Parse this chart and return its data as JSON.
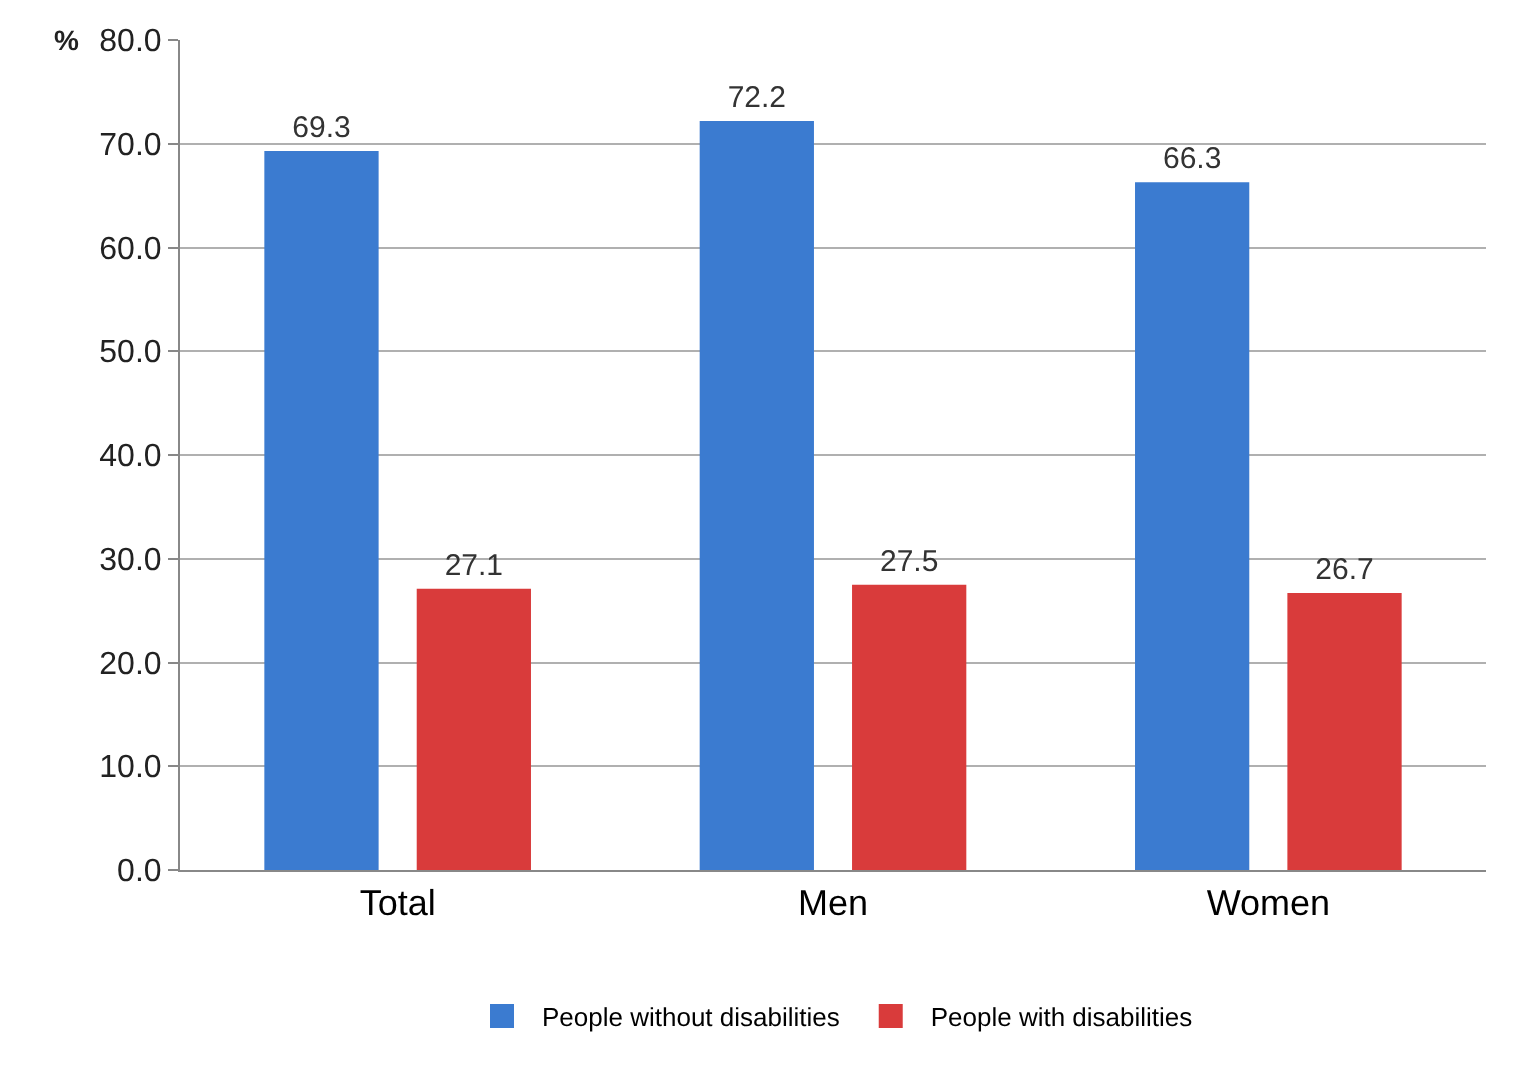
{
  "chart_data": {
    "type": "bar",
    "ylabel": "%",
    "categories": [
      "Total",
      "Men",
      "Women"
    ],
    "series": [
      {
        "name": "People without disabilities",
        "color": "#3b7bd0",
        "values": [
          69.3,
          72.2,
          66.3
        ]
      },
      {
        "name": "People with disabilities",
        "color": "#d93b3b",
        "values": [
          27.1,
          27.5,
          26.7
        ]
      }
    ],
    "ylim": [
      0,
      80
    ],
    "yticks": [
      {
        "value": 0,
        "label": "0.0"
      },
      {
        "value": 10,
        "label": "10.0"
      },
      {
        "value": 20,
        "label": "20.0"
      },
      {
        "value": 30,
        "label": "30.0"
      },
      {
        "value": 40,
        "label": "40.0"
      },
      {
        "value": 50,
        "label": "50.0"
      },
      {
        "value": 60,
        "label": "60.0"
      },
      {
        "value": 70,
        "label": "70.0"
      },
      {
        "value": 80,
        "label": "80.0"
      }
    ],
    "grid": "y",
    "legend": "bottom",
    "data_labels": true
  }
}
